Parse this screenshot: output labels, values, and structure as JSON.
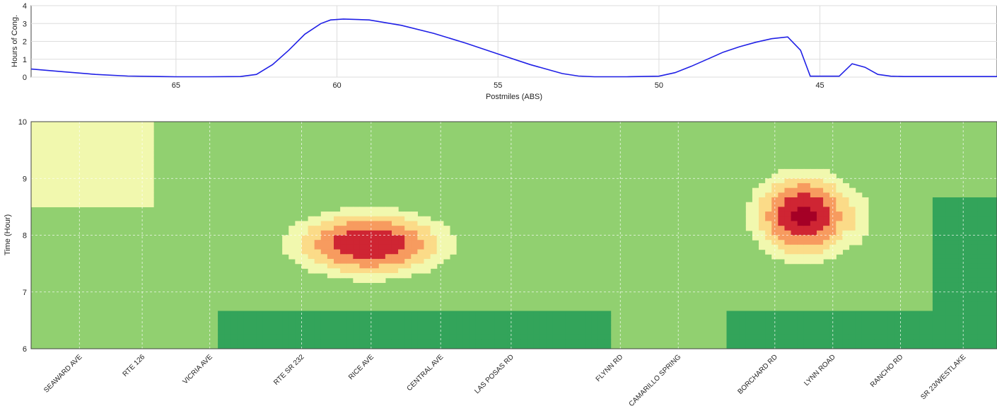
{
  "chart_data": [
    {
      "type": "line",
      "title": "",
      "xlabel": "Postmiles (ABS)",
      "ylabel": "Hours of Cong.",
      "xlim": [
        69.5,
        39.5
      ],
      "ylim": [
        0,
        4
      ],
      "x_ticks": [
        65,
        60,
        55,
        50,
        45
      ],
      "y_ticks": [
        0,
        1,
        2,
        3,
        4
      ],
      "grid": true,
      "colors": {
        "line": "#2020e6",
        "grid": "#dddddd"
      },
      "series": [
        {
          "name": "",
          "x": [
            69.5,
            68.5,
            67.5,
            66.5,
            65.5,
            65,
            64,
            63,
            62.5,
            62,
            61.5,
            61,
            60.5,
            60.2,
            59.8,
            59,
            58,
            57,
            56,
            55,
            54,
            53,
            52.5,
            52,
            51,
            50,
            49.5,
            49,
            48.5,
            48,
            47.5,
            47,
            46.5,
            46,
            45.6,
            45.3,
            45,
            44.4,
            44,
            43.6,
            43.2,
            42.8,
            42.4,
            42,
            41,
            40,
            39.5
          ],
          "y": [
            0.45,
            0.3,
            0.15,
            0.06,
            0.03,
            0.02,
            0.02,
            0.03,
            0.15,
            0.7,
            1.5,
            2.4,
            3.0,
            3.2,
            3.25,
            3.2,
            2.9,
            2.45,
            1.9,
            1.3,
            0.7,
            0.2,
            0.06,
            0.02,
            0.02,
            0.05,
            0.25,
            0.6,
            1.0,
            1.4,
            1.7,
            1.95,
            2.15,
            2.25,
            1.5,
            0.05,
            0.05,
            0.05,
            0.75,
            0.55,
            0.15,
            0.05,
            0.03,
            0.03,
            0.03,
            0.03,
            0.03
          ]
        }
      ]
    },
    {
      "type": "heatmap",
      "title": "",
      "xlabel": "",
      "ylabel": "Time (Hour)",
      "ylim": [
        6,
        10
      ],
      "y_ticks": [
        6,
        7,
        8,
        9,
        10
      ],
      "x_ticks": [
        "SEAWARD AVE",
        "RTE 126",
        "VICRIA AVE",
        "RTE SR 232",
        "RICE AVE",
        "CENTRAL AVE",
        "LAS POSAS RD",
        "FLYNN RD",
        "CAMARILLO SPRING",
        "BORCHARD RD",
        "LYNN ROAD",
        "RANCHO RD",
        "SR 23/WESTLAKE"
      ],
      "x_tick_positions": [
        0.05,
        0.115,
        0.185,
        0.28,
        0.352,
        0.424,
        0.497,
        0.61,
        0.67,
        0.77,
        0.83,
        0.9,
        0.965
      ],
      "levels": [
        0,
        1,
        2,
        3,
        4,
        5,
        6
      ],
      "colors": [
        "#33a45a",
        "#91d070",
        "#f1f8ae",
        "#fbdb88",
        "#f79b5f",
        "#cf2533",
        "#a50026"
      ],
      "hotspots": [
        {
          "x": 0.35,
          "y": 7.85,
          "peak": 6,
          "sx": 0.086,
          "sy": 0.62
        },
        {
          "x": 0.8,
          "y": 8.35,
          "peak": 6.3,
          "sx": 0.055,
          "sy": 0.8
        },
        {
          "x": 0.845,
          "y": 8.3,
          "peak": 3.3,
          "sx": 0.035,
          "sy": 0.7
        }
      ],
      "grid": true
    }
  ]
}
